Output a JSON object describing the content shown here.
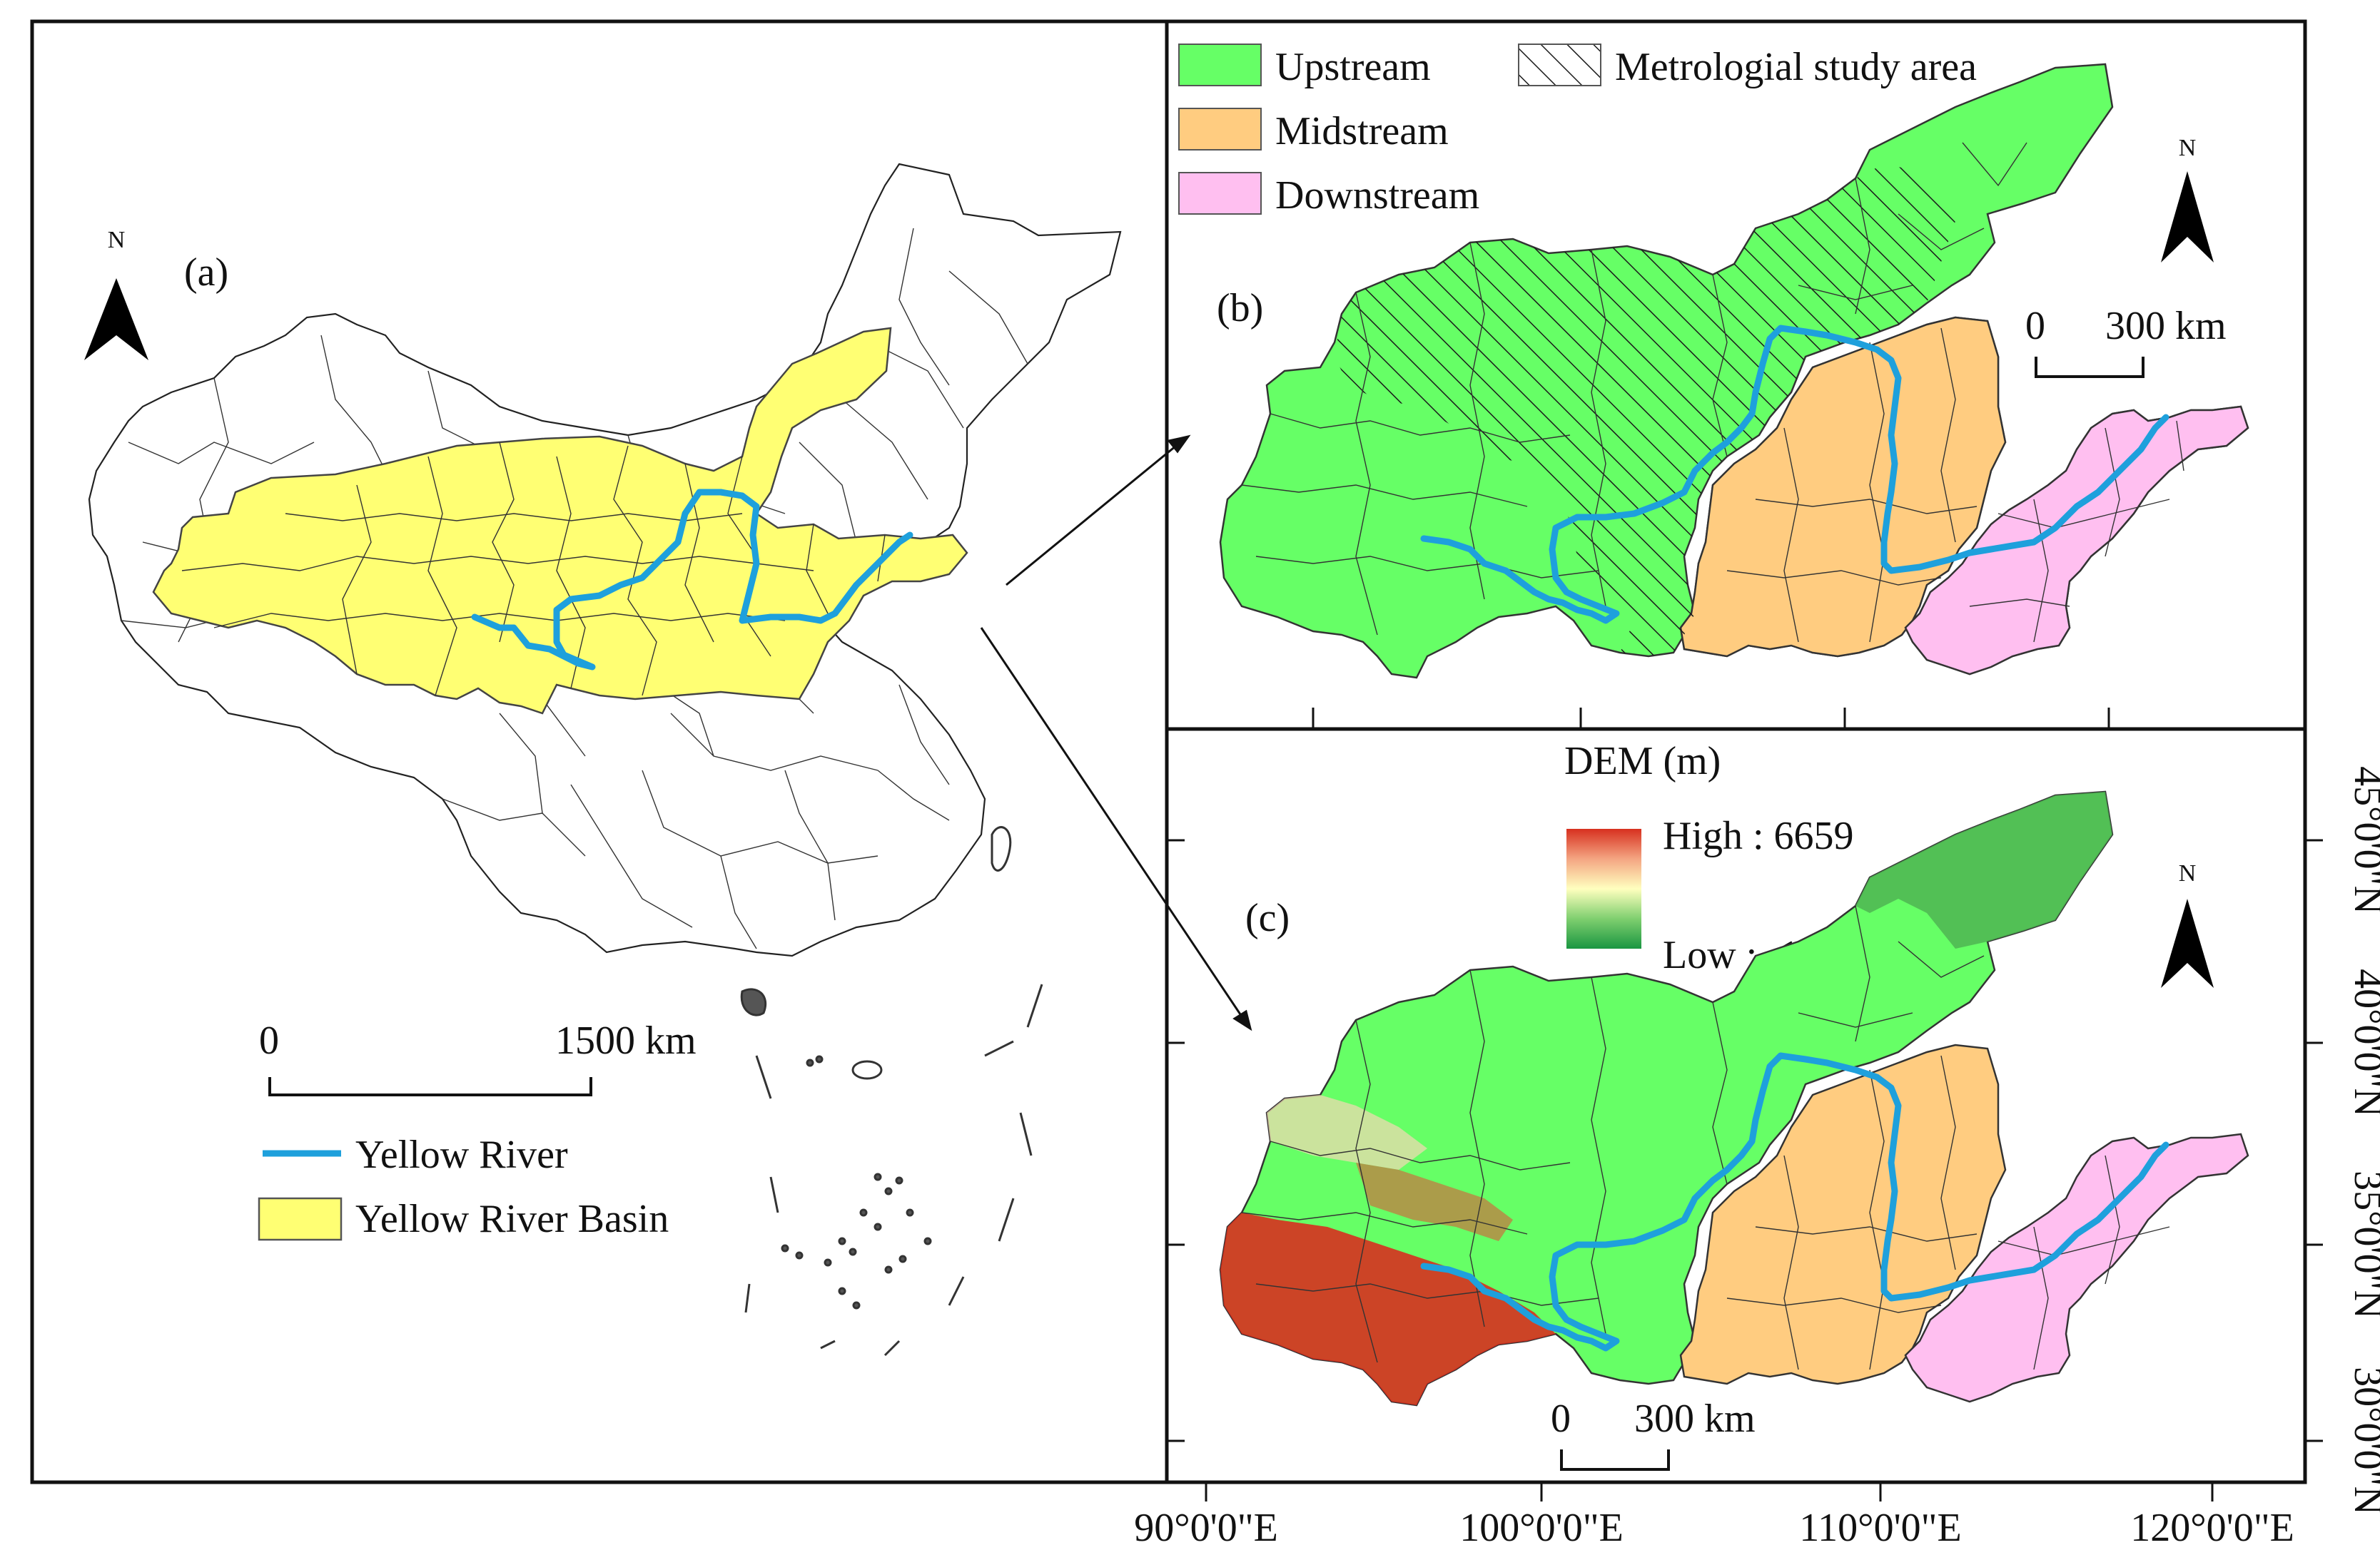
{
  "panels": {
    "a": {
      "label": "(a)",
      "north": "N",
      "scale": {
        "start": "0",
        "end": "1500 km"
      },
      "legend": [
        {
          "text": "Yellow River",
          "kind": "line",
          "color": "#1ea0dc"
        },
        {
          "text": "Yellow River Basin",
          "kind": "fill",
          "color": "#ffff73"
        }
      ]
    },
    "b": {
      "label": "(b)",
      "north": "N",
      "scale": {
        "start": "0",
        "end": "300 km"
      },
      "legend": [
        {
          "text": "Upstream",
          "color": "#66ff66"
        },
        {
          "text": "Midstream",
          "color": "#ffcc80"
        },
        {
          "text": "Downstream",
          "color": "#ffbff0"
        },
        {
          "text": "Metrologial study area",
          "pattern": "hatch"
        }
      ]
    },
    "c": {
      "label": "(c)",
      "north": "N",
      "scale": {
        "start": "0",
        "end": "300 km"
      },
      "dem_title": "DEM (m)",
      "dem_high": "High : 6659",
      "dem_low": "Low :−10",
      "colors": {
        "high": "#d7301f",
        "mid": "#ffffbf",
        "low": "#1a9641"
      }
    }
  },
  "axes": {
    "x_ticks": [
      "90°0'0\"E",
      "100°0'0\"E",
      "110°0'0\"E",
      "120°0'0\"E"
    ],
    "y_ticks": [
      "30°0'0\"N",
      "35°0'0\"N",
      "40°0'0\"N",
      "45°0'0\"N"
    ]
  }
}
